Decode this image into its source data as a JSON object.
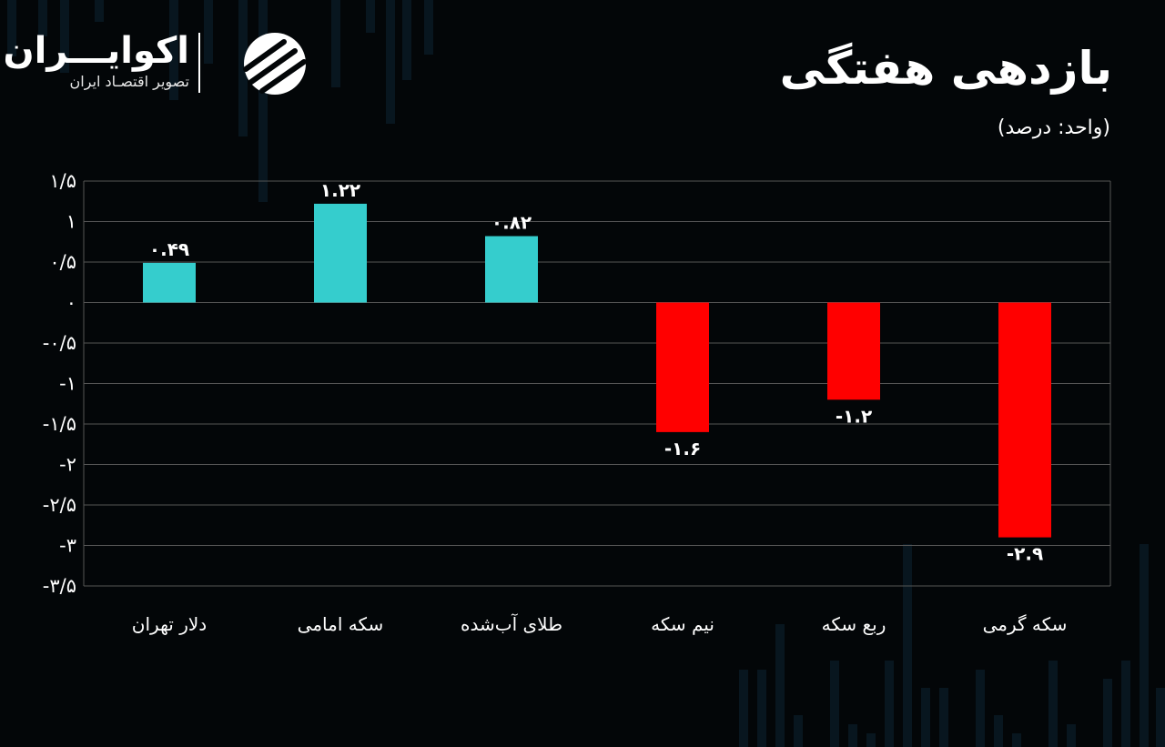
{
  "header": {
    "title": "بازدهی هفتگی",
    "unit": "(واحد: درصد)"
  },
  "brand": {
    "name": "اکوایـــران",
    "tagline": "تصویر اقتصـاد ایران"
  },
  "colors": {
    "positive": "#35cdcd",
    "negative": "#ff0000",
    "grid": "#555555",
    "text": "#ffffff",
    "background": "#030608"
  },
  "chart_data": {
    "type": "bar",
    "categories": [
      "دلار تهران",
      "سکه امامی",
      "طلای آب‌شده",
      "نیم سکه",
      "ربع سکه",
      "سکه گرمی"
    ],
    "values": [
      0.49,
      1.22,
      0.82,
      -1.6,
      -1.2,
      -2.9
    ],
    "data_labels": [
      "۰.۴۹",
      "۱.۲۲",
      "۰.۸۲",
      "-۱.۶",
      "-۱.۲",
      "-۲.۹"
    ],
    "yticks": [
      1.5,
      1,
      0.5,
      0,
      -0.5,
      -1,
      -1.5,
      -2,
      -2.5,
      -3,
      -3.5
    ],
    "ytick_labels": [
      "۱/۵",
      "۱",
      "۰/۵",
      "۰",
      "-۰/۵",
      "-۱",
      "-۱/۵",
      "-۲",
      "-۲/۵",
      "-۳",
      "-۳/۵"
    ],
    "ylim": [
      -3.5,
      1.5
    ],
    "xlabel": "",
    "ylabel": "",
    "grid": true,
    "legend": "none"
  }
}
